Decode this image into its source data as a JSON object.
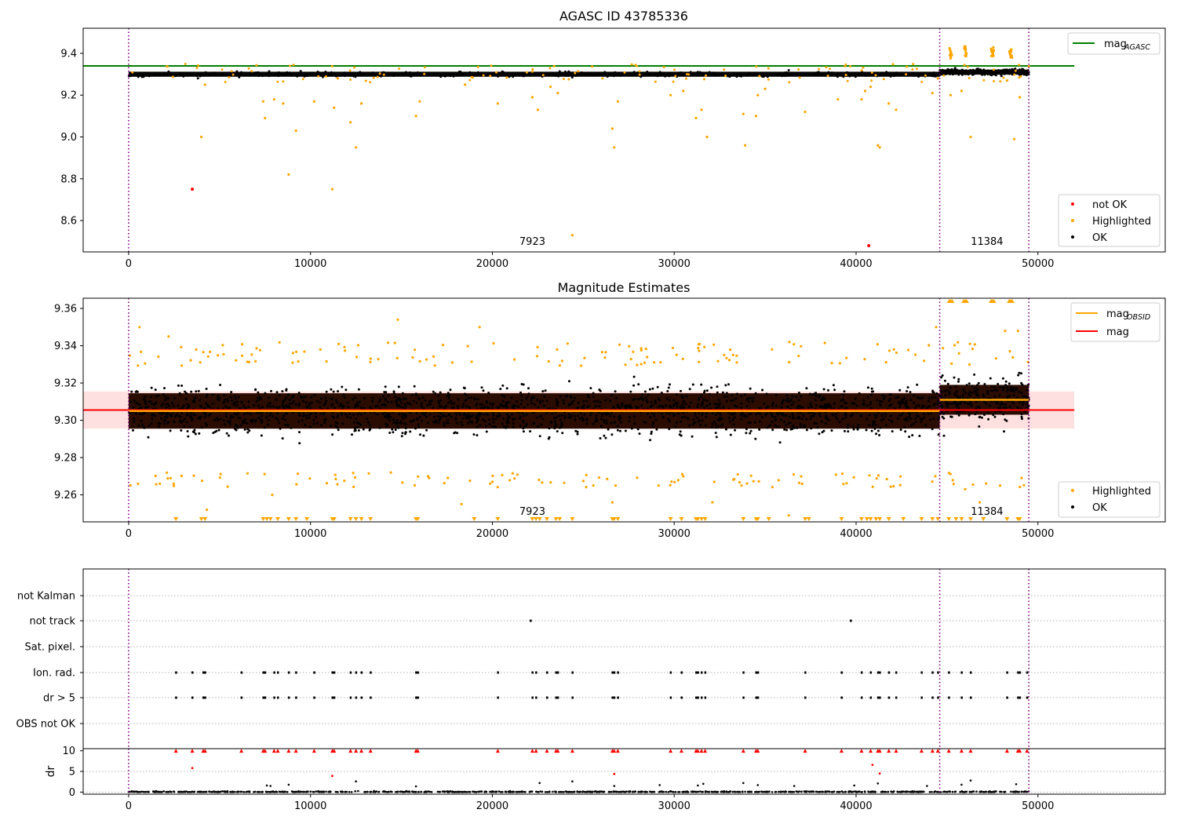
{
  "chart_data": [
    {
      "type": "scatter",
      "title": "AGASC ID 43785336",
      "xlim": [
        -2500,
        57000
      ],
      "ylim": [
        8.45,
        9.52
      ],
      "xticks": [
        0,
        10000,
        20000,
        30000,
        40000,
        50000
      ],
      "yticks": [
        8.6,
        8.8,
        9.0,
        9.2,
        9.4
      ],
      "ytick_labels": [
        "8.6",
        "8.8",
        "9.0",
        "9.2",
        "9.4"
      ],
      "xtick_labels": [
        "0",
        "10000",
        "20000",
        "30000",
        "40000",
        "50000"
      ],
      "vlines": [
        0,
        44600,
        49500
      ],
      "obs_labels": [
        {
          "x": 22200,
          "text": "7923"
        },
        {
          "x": 47200,
          "text": "11384"
        }
      ],
      "hlines": [
        {
          "name": "mag_AGASC",
          "y": 9.34,
          "x": [
            -2500,
            52000
          ],
          "color": "#008000"
        }
      ],
      "band": {
        "center": 9.3,
        "half_width": 0.012
      },
      "ok_segments": [
        {
          "x": [
            0,
            44600
          ],
          "center": 9.3
        },
        {
          "x": [
            44600,
            49500
          ],
          "center": 9.31
        }
      ],
      "highlighted_samples": [
        [
          4000,
          9.0
        ],
        [
          4200,
          9.25
        ],
        [
          7400,
          9.17
        ],
        [
          7500,
          9.09
        ],
        [
          8000,
          9.18
        ],
        [
          8500,
          9.16
        ],
        [
          8800,
          8.82
        ],
        [
          9200,
          9.03
        ],
        [
          10200,
          9.17
        ],
        [
          11200,
          8.75
        ],
        [
          11300,
          9.14
        ],
        [
          11500,
          9.28
        ],
        [
          12200,
          9.07
        ],
        [
          12500,
          8.95
        ],
        [
          12800,
          9.16
        ],
        [
          15800,
          9.1
        ],
        [
          16000,
          9.17
        ],
        [
          18500,
          9.25
        ],
        [
          20300,
          9.16
        ],
        [
          22200,
          9.19
        ],
        [
          22500,
          9.13
        ],
        [
          23200,
          9.24
        ],
        [
          23600,
          9.21
        ],
        [
          24400,
          8.53
        ],
        [
          26600,
          9.04
        ],
        [
          26700,
          8.95
        ],
        [
          26900,
          9.17
        ],
        [
          29800,
          9.2
        ],
        [
          30500,
          9.22
        ],
        [
          31200,
          9.09
        ],
        [
          31500,
          9.13
        ],
        [
          31800,
          9.0
        ],
        [
          33800,
          9.11
        ],
        [
          33900,
          8.96
        ],
        [
          34500,
          9.1
        ],
        [
          34600,
          9.2
        ],
        [
          35000,
          9.23
        ],
        [
          37200,
          9.12
        ],
        [
          39000,
          9.18
        ],
        [
          40300,
          9.18
        ],
        [
          40500,
          9.22
        ],
        [
          40800,
          9.24
        ],
        [
          41200,
          8.96
        ],
        [
          41300,
          8.95
        ],
        [
          41800,
          9.16
        ],
        [
          42200,
          9.13
        ],
        [
          44200,
          9.21
        ],
        [
          44500,
          9.28
        ],
        [
          45200,
          9.2
        ],
        [
          45800,
          9.22
        ],
        [
          46300,
          9.0
        ],
        [
          48300,
          9.27
        ],
        [
          48700,
          8.99
        ],
        [
          49000,
          9.19
        ]
      ],
      "highlighted_clusters": [
        [
          45200,
          9.4
        ],
        [
          46000,
          9.41
        ],
        [
          47500,
          9.41
        ],
        [
          48500,
          9.4
        ]
      ],
      "not_ok_points": [
        [
          3500,
          8.75
        ],
        [
          40700,
          8.48
        ]
      ],
      "legend_lines": [
        {
          "label": "mag",
          "sub": "AGASC",
          "color": "#008000"
        }
      ],
      "legend_markers": [
        {
          "label": "not OK",
          "color": "#ff0000"
        },
        {
          "label": "Highlighted",
          "color": "#ffa500"
        },
        {
          "label": "OK",
          "color": "#000000"
        }
      ]
    },
    {
      "type": "scatter",
      "title": "Magnitude Estimates",
      "xlim": [
        -2500,
        57000
      ],
      "ylim": [
        9.2455,
        9.3655
      ],
      "xticks": [
        0,
        10000,
        20000,
        30000,
        40000,
        50000
      ],
      "xtick_labels": [
        "0",
        "10000",
        "20000",
        "30000",
        "40000",
        "50000"
      ],
      "yticks": [
        9.26,
        9.28,
        9.3,
        9.32,
        9.34,
        9.36
      ],
      "ytick_labels": [
        "9.26",
        "9.28",
        "9.30",
        "9.32",
        "9.34",
        "9.36"
      ],
      "vlines": [
        0,
        44600,
        49500
      ],
      "obs_labels": [
        {
          "x": 22200,
          "text": "7923"
        },
        {
          "x": 47200,
          "text": "11384"
        }
      ],
      "band": {
        "center": 9.3055,
        "half_width": 0.01,
        "x": [
          -2500,
          52000
        ]
      },
      "mag_line": {
        "y": 9.3055,
        "x": [
          -2500,
          52000
        ]
      },
      "obsid_mags": [
        {
          "x": [
            0,
            44600
          ],
          "y": 9.305
        },
        {
          "x": [
            44600,
            49500
          ],
          "y": 9.311
        }
      ],
      "legend_lines": [
        {
          "label": "mag",
          "sub": "OBSID",
          "color": "#ffa500"
        },
        {
          "label": "mag",
          "sub": "",
          "color": "#ff0000"
        }
      ],
      "legend_markers": [
        {
          "label": "Highlighted",
          "color": "#ffa500"
        },
        {
          "label": "OK",
          "color": "#000000"
        }
      ]
    },
    {
      "type": "scatter",
      "title": "",
      "xlim": [
        -2500,
        57000
      ],
      "xticks": [
        0,
        10000,
        20000,
        30000,
        40000,
        50000
      ],
      "xtick_labels": [
        "0",
        "10000",
        "20000",
        "30000",
        "40000",
        "50000"
      ],
      "vlines": [
        0,
        44600,
        49500
      ],
      "flag_rows": [
        "not Kalman",
        "not track",
        "Sat. pixel.",
        "Ion. rad.",
        "dr > 5",
        "OBS not OK"
      ],
      "flag_points": {
        "not track": [
          22100,
          39700
        ],
        "Ion. rad.": [
          2600,
          3500,
          4100,
          4200,
          6200,
          7400,
          7500,
          8000,
          8200,
          8800,
          9200,
          10200,
          11200,
          11300,
          12200,
          12500,
          12800,
          13300,
          15800,
          15900,
          20300,
          22200,
          22400,
          23000,
          23500,
          23600,
          24400,
          26600,
          26700,
          26900,
          29800,
          30400,
          31200,
          31300,
          31500,
          31700,
          33800,
          34500,
          34600,
          37200,
          39200,
          40300,
          40800,
          41200,
          41300,
          41800,
          42200,
          43600,
          44200,
          44500,
          45100,
          45800,
          46300,
          48300,
          48900,
          49000,
          49400
        ],
        "dr > 5": [
          2600,
          3500,
          4100,
          4200,
          6200,
          7400,
          7500,
          8000,
          8200,
          8800,
          9200,
          10200,
          11200,
          11300,
          12200,
          12500,
          12800,
          13300,
          15800,
          15900,
          20300,
          22200,
          22400,
          23000,
          23500,
          23600,
          24400,
          26600,
          26700,
          26900,
          29800,
          30400,
          31200,
          31300,
          31500,
          31700,
          33800,
          34500,
          34600,
          37200,
          39200,
          40300,
          40800,
          41200,
          41300,
          41800,
          42200,
          43600,
          44200,
          44500,
          45100,
          45800,
          46300,
          48300,
          48900,
          49000,
          49400
        ]
      },
      "dr": {
        "ylabel": "dr",
        "yticks": [
          0,
          5,
          10
        ],
        "ytick_labels": [
          "0",
          "5",
          "10"
        ],
        "ylim": [
          -0.5,
          10.5
        ],
        "clipped_x": [
          2600,
          3500,
          4100,
          4200,
          6200,
          7400,
          7500,
          8000,
          8200,
          8800,
          9200,
          10200,
          11200,
          11300,
          12200,
          12500,
          12800,
          13300,
          15800,
          15900,
          20300,
          22200,
          22400,
          23000,
          23500,
          23600,
          24400,
          26600,
          26700,
          26900,
          29800,
          30400,
          31200,
          31300,
          31500,
          31700,
          33800,
          34500,
          34600,
          37200,
          39200,
          40300,
          40800,
          41200,
          41300,
          41800,
          42200,
          43600,
          44200,
          44500,
          45100,
          45800,
          46300,
          48300,
          48900,
          49000,
          49400
        ],
        "red_points": [
          [
            3500,
            5.8
          ],
          [
            11200,
            3.9
          ],
          [
            26700,
            4.4
          ],
          [
            40900,
            6.6
          ],
          [
            41300,
            4.5
          ]
        ],
        "outlier_points": [
          [
            7600,
            1.6
          ],
          [
            7800,
            1.5
          ],
          [
            8800,
            1.8
          ],
          [
            12500,
            2.6
          ],
          [
            15800,
            1.4
          ],
          [
            22600,
            2.2
          ],
          [
            24400,
            2.6
          ],
          [
            26700,
            1.5
          ],
          [
            29200,
            1.7
          ],
          [
            31300,
            1.6
          ],
          [
            31600,
            2.0
          ],
          [
            33800,
            2.2
          ],
          [
            34600,
            1.7
          ],
          [
            36600,
            1.5
          ],
          [
            39900,
            1.6
          ],
          [
            41200,
            2.1
          ],
          [
            43900,
            1.5
          ],
          [
            45800,
            1.8
          ],
          [
            46300,
            2.8
          ],
          [
            48800,
            1.9
          ]
        ]
      }
    }
  ]
}
